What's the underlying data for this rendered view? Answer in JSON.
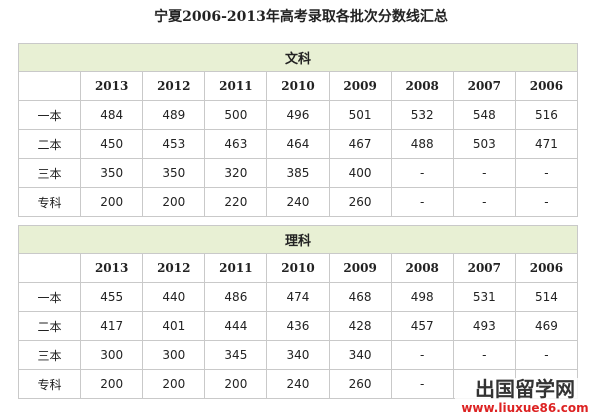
{
  "title": "宁夏2006-2013年高考录取各批次分数线汇总",
  "sections": [
    {
      "name": "文科",
      "years": [
        2013,
        2012,
        2011,
        2010,
        2009,
        2008,
        2007,
        2006
      ],
      "rows": [
        {
          "label": "一本",
          "values": [
            484,
            489,
            500,
            496,
            501,
            532,
            548,
            516
          ]
        },
        {
          "label": "二本",
          "values": [
            450,
            453,
            463,
            464,
            467,
            488,
            503,
            471
          ]
        },
        {
          "label": "三本",
          "values": [
            350,
            350,
            320,
            385,
            400,
            "-",
            "-",
            "-"
          ]
        },
        {
          "label": "专科",
          "values": [
            200,
            200,
            220,
            240,
            260,
            "-",
            "-",
            "-"
          ]
        }
      ]
    },
    {
      "name": "理科",
      "years": [
        2013,
        2012,
        2011,
        2010,
        2009,
        2008,
        2007,
        2006
      ],
      "rows": [
        {
          "label": "一本",
          "values": [
            455,
            440,
            486,
            474,
            468,
            498,
            531,
            514
          ]
        },
        {
          "label": "二本",
          "values": [
            417,
            401,
            444,
            436,
            428,
            457,
            493,
            469
          ]
        },
        {
          "label": "三本",
          "values": [
            300,
            300,
            345,
            340,
            340,
            "-",
            "-",
            "-"
          ]
        },
        {
          "label": "专科",
          "values": [
            200,
            200,
            200,
            240,
            260,
            "-",
            "-",
            "-"
          ]
        }
      ]
    }
  ],
  "watermark": {
    "brand": "出国留学网",
    "url": "www.liuxue86.com"
  }
}
